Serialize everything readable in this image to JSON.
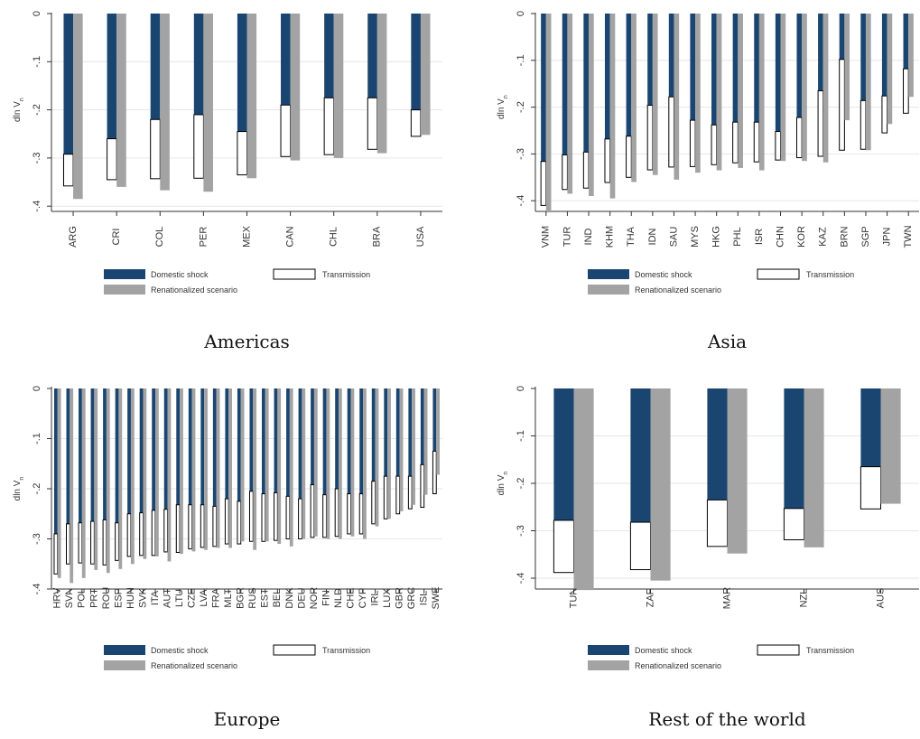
{
  "colors": {
    "domestic": "#1a4570",
    "transmission": "#ffffff",
    "renationalized": "#a3a3a3",
    "grid": "#e6e6e6",
    "axis": "#333333"
  },
  "legend": {
    "domestic": "Domestic shock",
    "transmission": "Transmission",
    "renationalized": "Renationalized scenario"
  },
  "chart_data": [
    {
      "type": "bar",
      "caption": "Americas",
      "ylabel": "dln V_n",
      "ylim": [
        -0.42,
        0
      ],
      "yticks": [
        0,
        -0.1,
        -0.2,
        -0.3,
        -0.4
      ],
      "ytick_labels": [
        "0",
        "-.1",
        "-.2",
        "-.3",
        "-.4"
      ],
      "grid": true,
      "legend_position": "bottom",
      "categories": [
        "ARG",
        "CRI",
        "COL",
        "PER",
        "MEX",
        "CAN",
        "CHL",
        "BRA",
        "USA"
      ],
      "series": [
        {
          "name": "Domestic shock",
          "values": [
            -0.292,
            -0.26,
            -0.22,
            -0.21,
            -0.245,
            -0.19,
            -0.175,
            -0.175,
            -0.2
          ]
        },
        {
          "name": "Transmission",
          "values": [
            -0.066,
            -0.085,
            -0.123,
            -0.132,
            -0.09,
            -0.107,
            -0.118,
            -0.107,
            -0.055
          ]
        },
        {
          "name": "Renationalized scenario",
          "values": [
            -0.385,
            -0.36,
            -0.367,
            -0.37,
            -0.342,
            -0.305,
            -0.3,
            -0.29,
            -0.252
          ]
        }
      ]
    },
    {
      "type": "bar",
      "caption": "Asia",
      "ylabel": "dln V_n",
      "ylim": [
        -0.42,
        0
      ],
      "yticks": [
        0,
        -0.1,
        -0.2,
        -0.3,
        -0.4
      ],
      "ytick_labels": [
        "0",
        "-.1",
        "-.2",
        "-.3",
        "-.4"
      ],
      "grid": true,
      "legend_position": "bottom",
      "categories": [
        "VNM",
        "TUR",
        "IND",
        "KHM",
        "THA",
        "IDN",
        "SAU",
        "MYS",
        "HKG",
        "PHL",
        "ISR",
        "CHN",
        "KOR",
        "KAZ",
        "BRN",
        "SGP",
        "JPN",
        "TWN"
      ],
      "series": [
        {
          "name": "Domestic shock",
          "values": [
            -0.316,
            -0.302,
            -0.296,
            -0.268,
            -0.262,
            -0.196,
            -0.178,
            -0.228,
            -0.238,
            -0.232,
            -0.232,
            -0.252,
            -0.222,
            -0.165,
            -0.098,
            -0.186,
            -0.176,
            -0.118
          ]
        },
        {
          "name": "Transmission",
          "values": [
            -0.094,
            -0.074,
            -0.077,
            -0.093,
            -0.088,
            -0.138,
            -0.15,
            -0.099,
            -0.085,
            -0.087,
            -0.085,
            -0.061,
            -0.086,
            -0.14,
            -0.194,
            -0.104,
            -0.079,
            -0.095
          ]
        },
        {
          "name": "Renationalized scenario",
          "values": [
            -0.425,
            -0.385,
            -0.39,
            -0.395,
            -0.36,
            -0.345,
            -0.355,
            -0.34,
            -0.335,
            -0.33,
            -0.335,
            -0.315,
            -0.315,
            -0.318,
            -0.228,
            -0.292,
            -0.236,
            -0.178
          ]
        }
      ]
    },
    {
      "type": "bar",
      "caption": "Europe",
      "ylabel": "dln V_n",
      "ylim": [
        -0.42,
        0
      ],
      "yticks": [
        0,
        -0.1,
        -0.2,
        -0.3,
        -0.4
      ],
      "ytick_labels": [
        "0",
        "-.1",
        "-.2",
        "-.3",
        "-.4"
      ],
      "grid": true,
      "legend_position": "bottom",
      "categories": [
        "HRV",
        "SVN",
        "POL",
        "PRT",
        "ROU",
        "ESP",
        "HUN",
        "SVK",
        "ITA",
        "AUT",
        "LTU",
        "CZE",
        "LVA",
        "FRA",
        "MLT",
        "BGR",
        "RUS",
        "EST",
        "BEL",
        "DNK",
        "DEU",
        "NOR",
        "FIN",
        "NLD",
        "CHE",
        "CYP",
        "IRL",
        "LUX",
        "GBR",
        "GRC",
        "ISL",
        "SWE"
      ],
      "series": [
        {
          "name": "Domestic shock",
          "values": [
            -0.29,
            -0.27,
            -0.268,
            -0.265,
            -0.262,
            -0.268,
            -0.25,
            -0.248,
            -0.243,
            -0.241,
            -0.232,
            -0.232,
            -0.232,
            -0.235,
            -0.22,
            -0.225,
            -0.205,
            -0.21,
            -0.208,
            -0.215,
            -0.22,
            -0.192,
            -0.212,
            -0.2,
            -0.21,
            -0.21,
            -0.185,
            -0.175,
            -0.175,
            -0.175,
            -0.152,
            -0.125
          ]
        },
        {
          "name": "Transmission",
          "values": [
            -0.08,
            -0.08,
            -0.08,
            -0.085,
            -0.09,
            -0.075,
            -0.085,
            -0.085,
            -0.09,
            -0.085,
            -0.095,
            -0.088,
            -0.085,
            -0.08,
            -0.09,
            -0.085,
            -0.1,
            -0.095,
            -0.095,
            -0.085,
            -0.08,
            -0.105,
            -0.085,
            -0.095,
            -0.08,
            -0.08,
            -0.085,
            -0.085,
            -0.075,
            -0.065,
            -0.085,
            -0.085
          ]
        },
        {
          "name": "Renationalized scenario",
          "values": [
            -0.378,
            -0.388,
            -0.378,
            -0.362,
            -0.368,
            -0.36,
            -0.35,
            -0.34,
            -0.335,
            -0.345,
            -0.33,
            -0.325,
            -0.322,
            -0.318,
            -0.318,
            -0.305,
            -0.322,
            -0.305,
            -0.31,
            -0.315,
            -0.3,
            -0.295,
            -0.3,
            -0.3,
            -0.295,
            -0.3,
            -0.275,
            -0.26,
            -0.245,
            -0.232,
            -0.212,
            -0.172
          ]
        }
      ]
    },
    {
      "type": "bar",
      "caption": "Rest of the world",
      "ylabel": "dln V_n",
      "ylim": [
        -0.42,
        0
      ],
      "yticks": [
        0,
        -0.1,
        -0.2,
        -0.3,
        -0.4
      ],
      "ytick_labels": [
        "0",
        "-.1",
        "-.2",
        "-.3",
        "-.4"
      ],
      "grid": true,
      "legend_position": "bottom",
      "categories": [
        "TUN",
        "ZAF",
        "MAR",
        "NZL",
        "AUS"
      ],
      "series": [
        {
          "name": "Domestic shock",
          "values": [
            -0.278,
            -0.282,
            -0.235,
            -0.253,
            -0.165
          ]
        },
        {
          "name": "Transmission",
          "values": [
            -0.11,
            -0.1,
            -0.098,
            -0.066,
            -0.089
          ]
        },
        {
          "name": "Renationalized scenario",
          "values": [
            -0.425,
            -0.405,
            -0.348,
            -0.335,
            -0.243
          ]
        }
      ]
    }
  ]
}
